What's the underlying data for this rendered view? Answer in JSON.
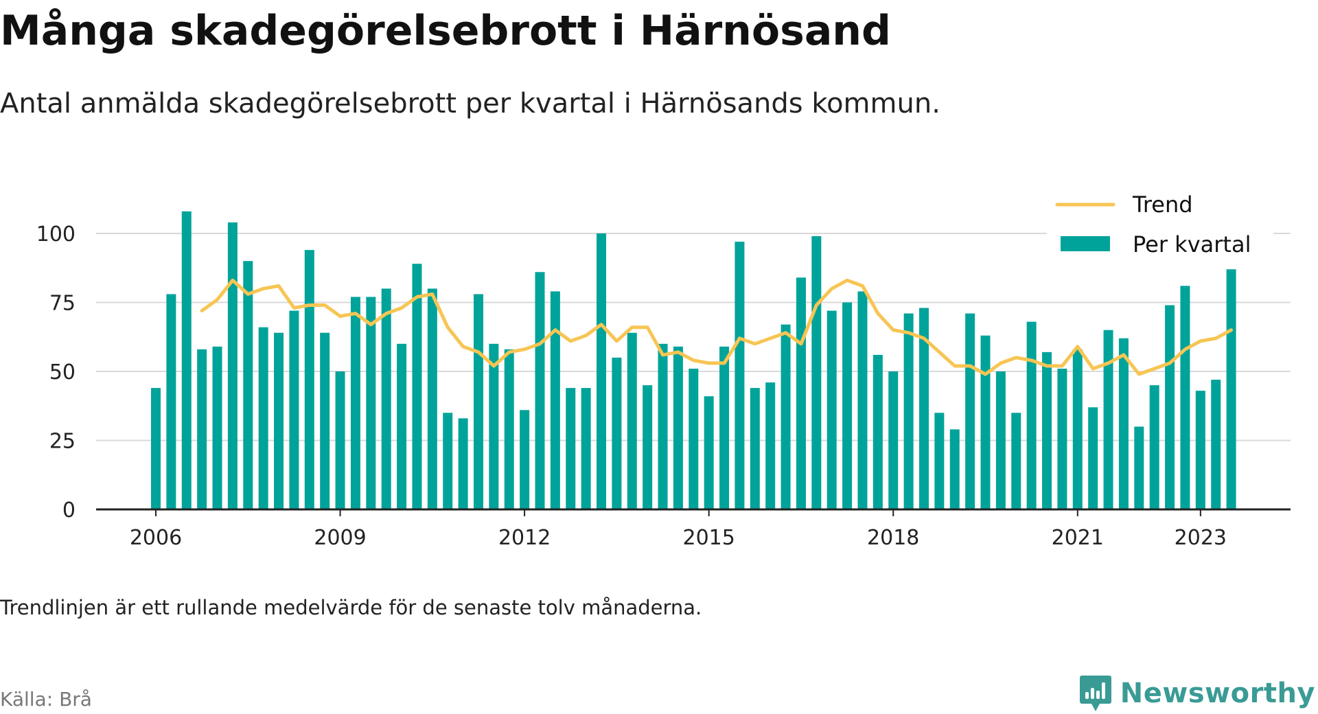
{
  "title": "Många skadegörelsebrott i Härnösand",
  "subtitle": "Antal anmälda skadegörelsebrott per kvartal i Härnösands kommun.",
  "note": "Trendlinjen är ett rullande medelvärde för de senaste tolv månaderna.",
  "source": "Källa: Brå",
  "brand": {
    "name": "Newsworthy",
    "color": "#3a9b95",
    "icon": "newsworthy-logo-icon"
  },
  "colors": {
    "bar": "#00a39a",
    "trend": "#f7c553",
    "grid": "#d9d9d9",
    "axis": "#222222"
  },
  "chart_data": {
    "type": "bar",
    "title": "Många skadegörelsebrott i Härnösand",
    "ylim": [
      0,
      115
    ],
    "yticks": [
      0,
      25,
      50,
      75,
      100
    ],
    "xticks": [
      "2006",
      "2009",
      "2012",
      "2015",
      "2018",
      "2021",
      "2023"
    ],
    "grid": true,
    "legend_position": "top-right",
    "legend": [
      {
        "label": "Trend",
        "kind": "line"
      },
      {
        "label": "Per kvartal",
        "kind": "bar"
      }
    ],
    "categories": [
      "2006 Q1",
      "2006 Q2",
      "2006 Q3",
      "2006 Q4",
      "2007 Q1",
      "2007 Q2",
      "2007 Q3",
      "2007 Q4",
      "2008 Q1",
      "2008 Q2",
      "2008 Q3",
      "2008 Q4",
      "2009 Q1",
      "2009 Q2",
      "2009 Q3",
      "2009 Q4",
      "2010 Q1",
      "2010 Q2",
      "2010 Q3",
      "2010 Q4",
      "2011 Q1",
      "2011 Q2",
      "2011 Q3",
      "2011 Q4",
      "2012 Q1",
      "2012 Q2",
      "2012 Q3",
      "2012 Q4",
      "2013 Q1",
      "2013 Q2",
      "2013 Q3",
      "2013 Q4",
      "2014 Q1",
      "2014 Q2",
      "2014 Q3",
      "2014 Q4",
      "2015 Q1",
      "2015 Q2",
      "2015 Q3",
      "2015 Q4",
      "2016 Q1",
      "2016 Q2",
      "2016 Q3",
      "2016 Q4",
      "2017 Q1",
      "2017 Q2",
      "2017 Q3",
      "2017 Q4",
      "2018 Q1",
      "2018 Q2",
      "2018 Q3",
      "2018 Q4",
      "2019 Q1",
      "2019 Q2",
      "2019 Q3",
      "2019 Q4",
      "2020 Q1",
      "2020 Q2",
      "2020 Q3",
      "2020 Q4",
      "2021 Q1",
      "2021 Q2",
      "2021 Q3",
      "2021 Q4",
      "2022 Q1",
      "2022 Q2",
      "2022 Q3",
      "2022 Q4",
      "2023 Q1",
      "2023 Q2",
      "2023 Q3"
    ],
    "series": [
      {
        "name": "Per kvartal",
        "type": "bar",
        "values": [
          44,
          78,
          108,
          58,
          59,
          104,
          90,
          66,
          64,
          72,
          94,
          64,
          50,
          77,
          77,
          80,
          60,
          89,
          80,
          35,
          33,
          78,
          60,
          58,
          36,
          86,
          79,
          44,
          44,
          100,
          55,
          64,
          45,
          60,
          59,
          51,
          41,
          59,
          97,
          44,
          46,
          67,
          84,
          99,
          72,
          75,
          79,
          56,
          50,
          71,
          73,
          35,
          29,
          71,
          63,
          50,
          35,
          68,
          57,
          51,
          58,
          37,
          65,
          62,
          30,
          45,
          74,
          81,
          43,
          47,
          87
        ]
      },
      {
        "name": "Trend",
        "type": "line",
        "values": [
          null,
          null,
          null,
          72,
          76,
          83,
          78,
          80,
          81,
          73,
          74,
          74,
          70,
          71,
          67,
          71,
          73,
          77,
          78,
          66,
          59,
          57,
          52,
          57,
          58,
          60,
          65,
          61,
          63,
          67,
          61,
          66,
          66,
          56,
          57,
          54,
          53,
          53,
          62,
          60,
          62,
          64,
          60,
          74,
          80,
          83,
          81,
          71,
          65,
          64,
          62,
          57,
          52,
          52,
          49,
          53,
          55,
          54,
          52,
          52,
          59,
          51,
          53,
          56,
          49,
          51,
          53,
          58,
          61,
          62,
          65
        ]
      }
    ]
  }
}
